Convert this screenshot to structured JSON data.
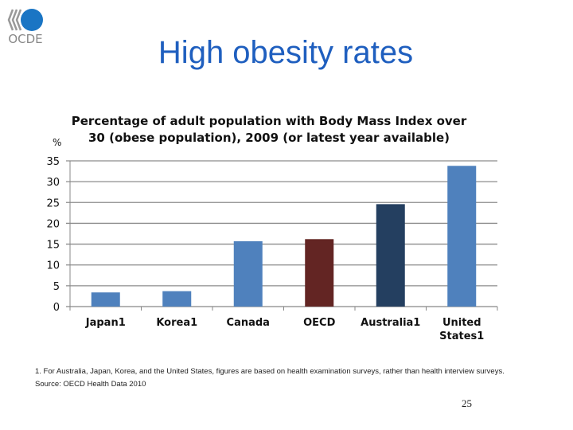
{
  "logo": {
    "text": "OCDE"
  },
  "slide_title": "High obesity rates",
  "chart_data": {
    "type": "bar",
    "title_line1": "Percentage of adult population with Body Mass Index over",
    "title_line2": "30 (obese population), 2009 (or latest year available)",
    "ylabel": "%",
    "categories": [
      "Japan1",
      "Korea1",
      "Canada",
      "OECD",
      "Australia1",
      "United States1"
    ],
    "category_lines": [
      [
        "Japan1"
      ],
      [
        "Korea1"
      ],
      [
        "Canada"
      ],
      [
        "OECD"
      ],
      [
        "Australia1"
      ],
      [
        "United",
        "States1"
      ]
    ],
    "values": [
      3.4,
      3.7,
      15.7,
      16.2,
      24.6,
      33.8
    ],
    "colors": [
      "#4f81bd",
      "#4f81bd",
      "#4f81bd",
      "#632523",
      "#243f60",
      "#4f81bd"
    ],
    "ylim": [
      0,
      35
    ],
    "yticks": [
      0,
      5,
      10,
      15,
      20,
      25,
      30,
      35
    ],
    "grid": true,
    "legend": "none"
  },
  "footnote": "1.   For Australia, Japan, Korea, and the United States, figures are based on health examination surveys, rather than health interview surveys.",
  "source": "Source: OECD Health Data 2010",
  "page_number": "25"
}
